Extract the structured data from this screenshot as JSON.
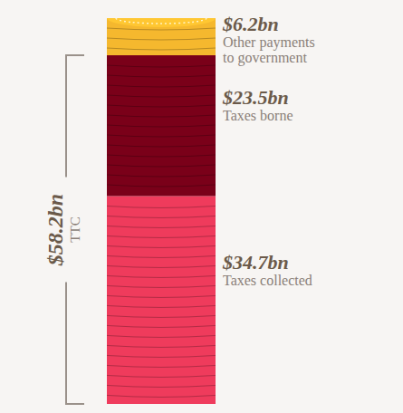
{
  "chart_data": {
    "type": "bar",
    "stacked": true,
    "categories": [
      null
    ],
    "series": [
      {
        "name": "Taxes collected",
        "color": "#ef3b5c",
        "values": [
          34.7
        ],
        "value_labels": [
          "$34.7bn"
        ]
      },
      {
        "name": "Taxes borne",
        "color": "#7a0019",
        "values": [
          23.5
        ],
        "value_labels": [
          "$23.5bn"
        ]
      },
      {
        "name": "Other payments to government",
        "color": "#f5b82e",
        "values": [
          6.2
        ],
        "value_labels": [
          "$6.2bn"
        ]
      }
    ],
    "ylim": [
      0,
      64.4
    ],
    "yticks": [],
    "tick_labels": false,
    "data_labels": true,
    "total": {
      "value": 58.2,
      "value_label": "$58.2bn",
      "label": "TTC"
    }
  }
}
